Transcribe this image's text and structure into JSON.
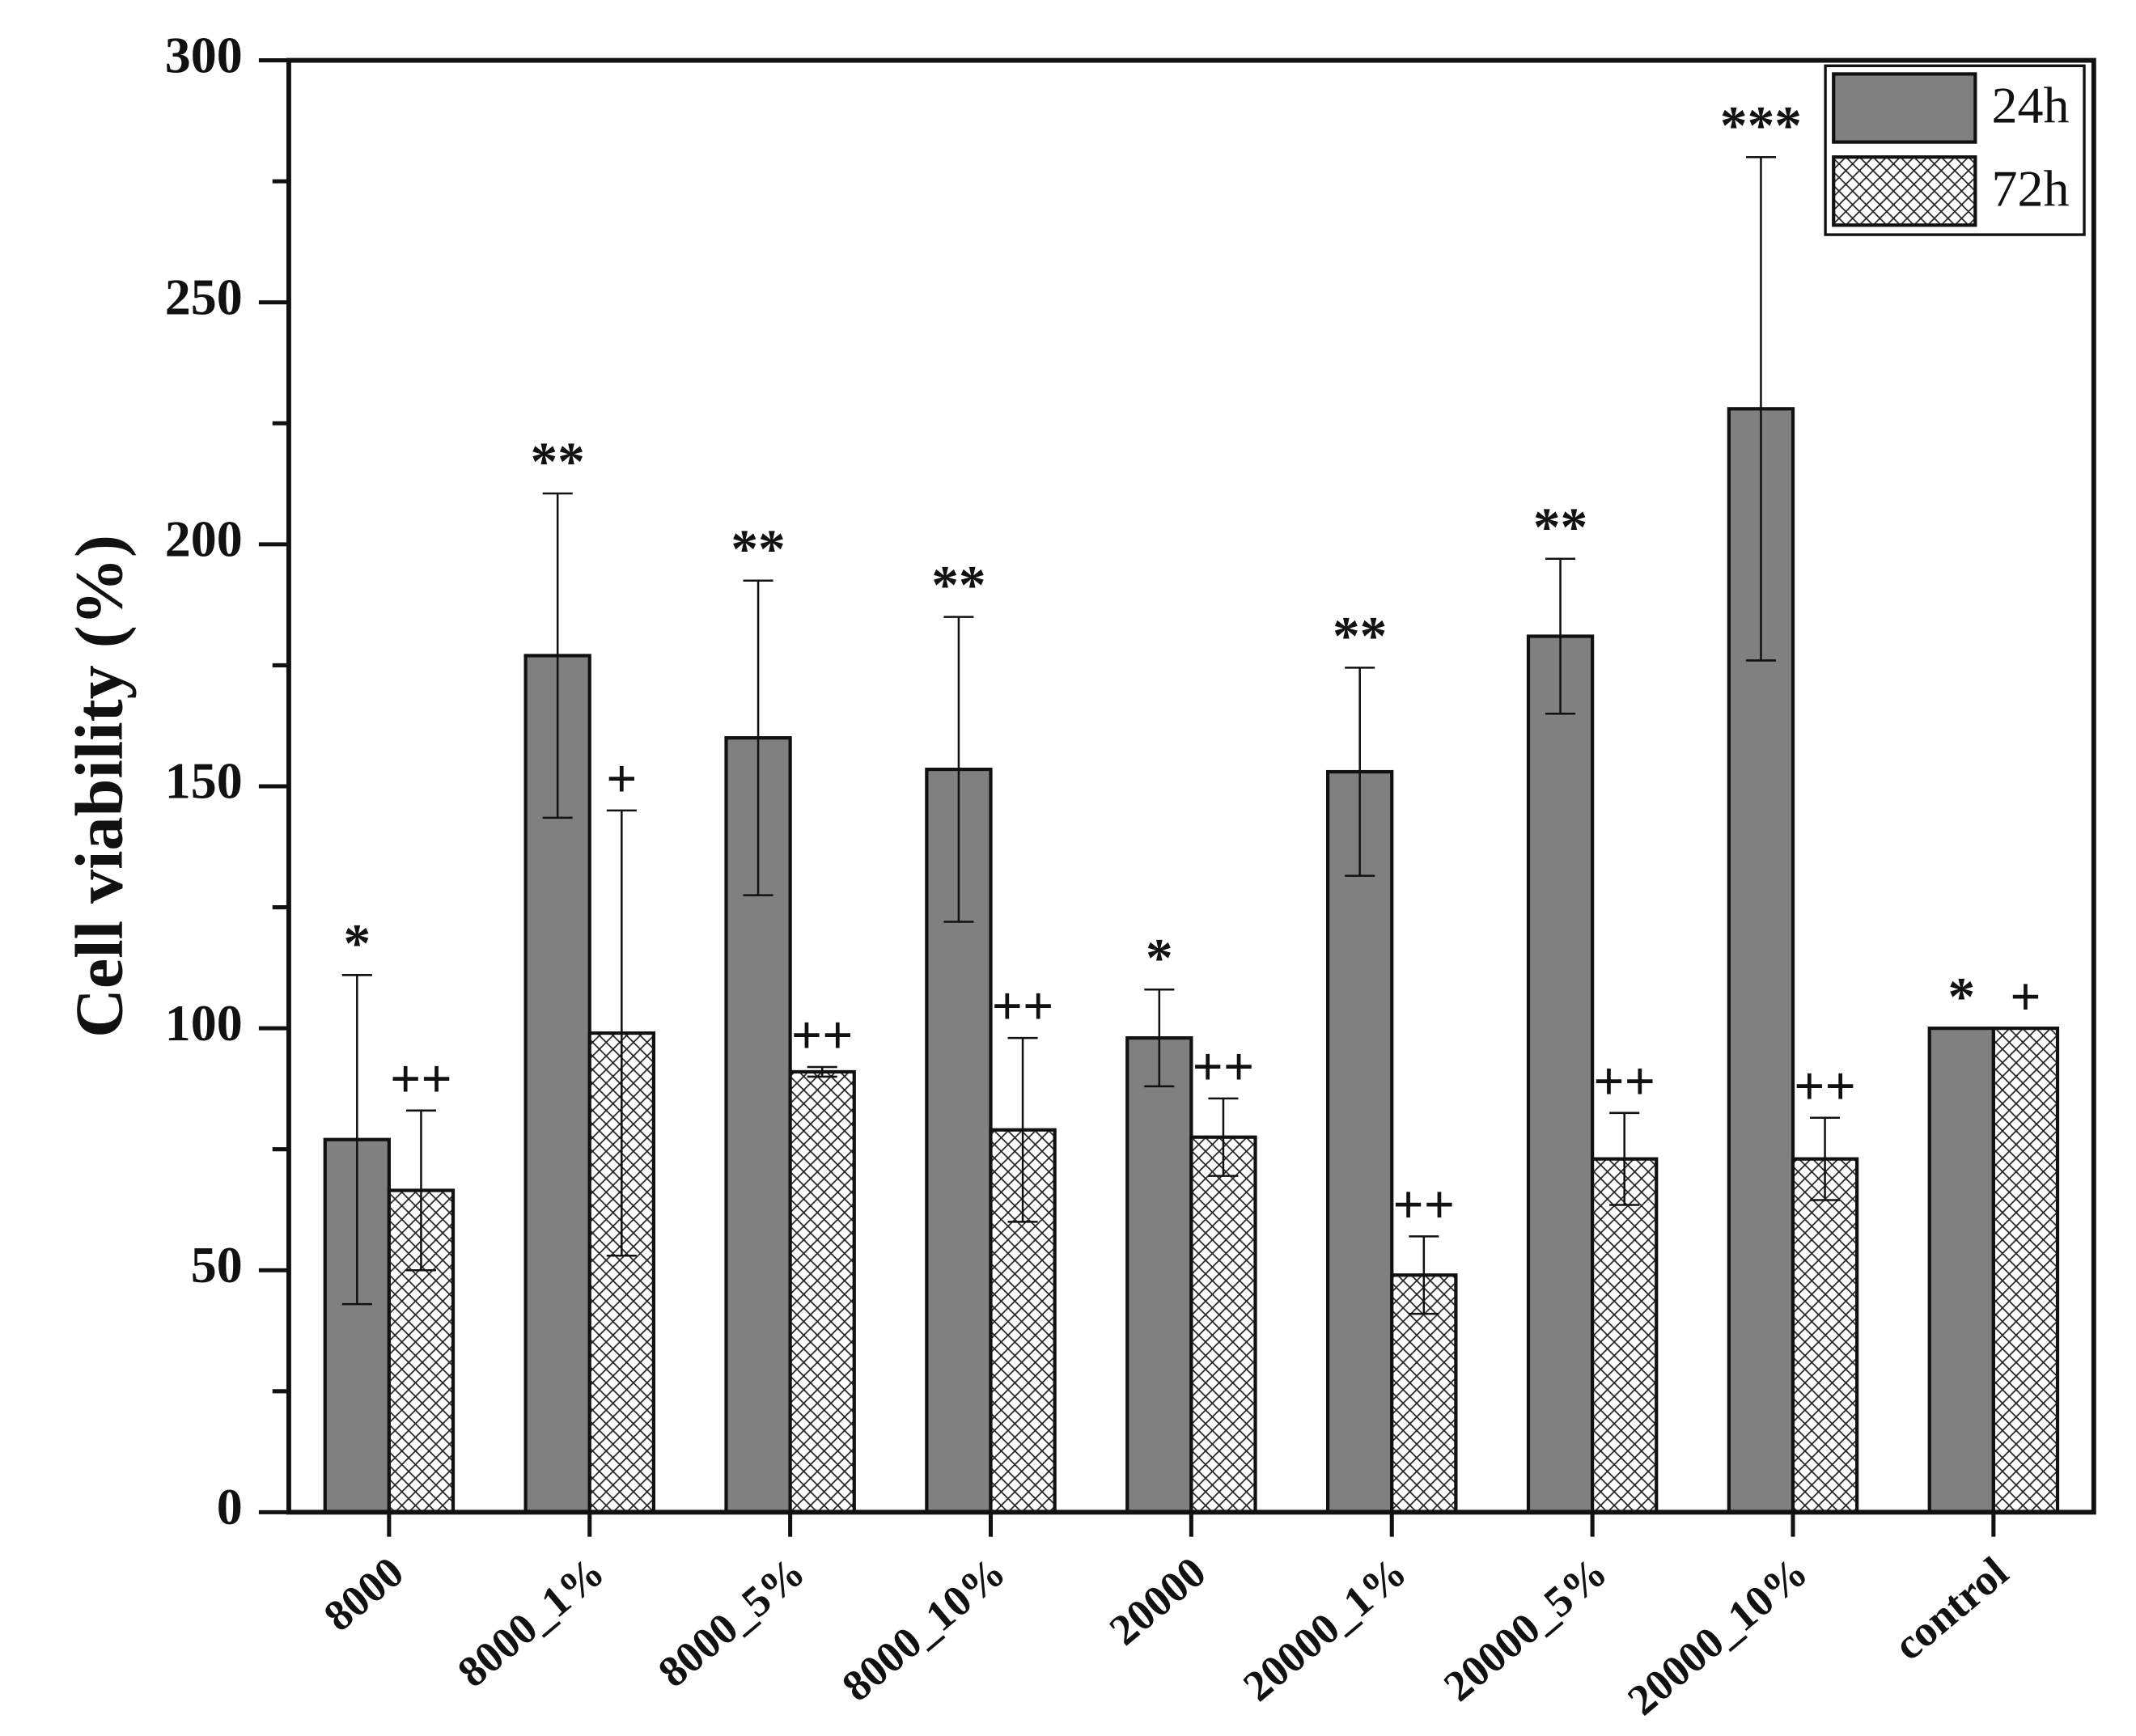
{
  "chart_data": {
    "type": "bar",
    "y_label": "Cell viability (%)",
    "categories": [
      "8000",
      "8000_1%",
      "8000_5%",
      "8000_10%",
      "20000",
      "20000_1%",
      "20000_5%",
      "20000_10%",
      "control"
    ],
    "series": [
      {
        "name": "24h",
        "color": "#808080",
        "hatch": "none",
        "values": [
          77,
          177,
          160,
          153.5,
          98,
          153,
          181,
          228,
          100
        ],
        "errors": [
          34,
          33.5,
          32.5,
          31.5,
          10,
          21.5,
          16,
          52,
          0
        ],
        "annotations": [
          "*",
          "**",
          "**",
          "**",
          "*",
          "**",
          "**",
          "***",
          "*"
        ]
      },
      {
        "name": "72h",
        "color": "#ffffff",
        "hatch": "cross",
        "values": [
          66.5,
          99,
          91,
          79,
          77.5,
          49,
          73,
          73,
          100
        ],
        "errors": [
          16.5,
          46,
          1,
          19,
          8,
          8,
          9.5,
          8.5,
          0
        ],
        "annotations": [
          "++",
          "+",
          "++",
          "++",
          "++",
          "++",
          "++",
          "++",
          "+"
        ]
      }
    ],
    "ylim": [
      0,
      300
    ],
    "yticks": [
      0,
      50,
      100,
      150,
      200,
      250,
      300
    ],
    "yminor": [
      25,
      75,
      125,
      175,
      225,
      275
    ],
    "grid": false,
    "legend": "upper right"
  }
}
